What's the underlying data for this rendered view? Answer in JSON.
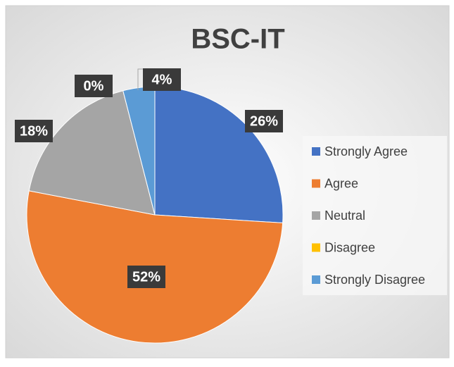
{
  "chart_data": {
    "type": "pie",
    "title": "BSC-IT",
    "categories": [
      "Strongly Agree",
      "Agree",
      "Neutral",
      "Disagree",
      "Strongly Disagree"
    ],
    "values": [
      26,
      52,
      18,
      0,
      4
    ],
    "value_labels": [
      "26%",
      "52%",
      "18%",
      "0%",
      "4%"
    ],
    "colors": [
      "#4472c4",
      "#ed7d31",
      "#a5a5a5",
      "#ffc000",
      "#5b9bd5"
    ],
    "legend": "right"
  }
}
